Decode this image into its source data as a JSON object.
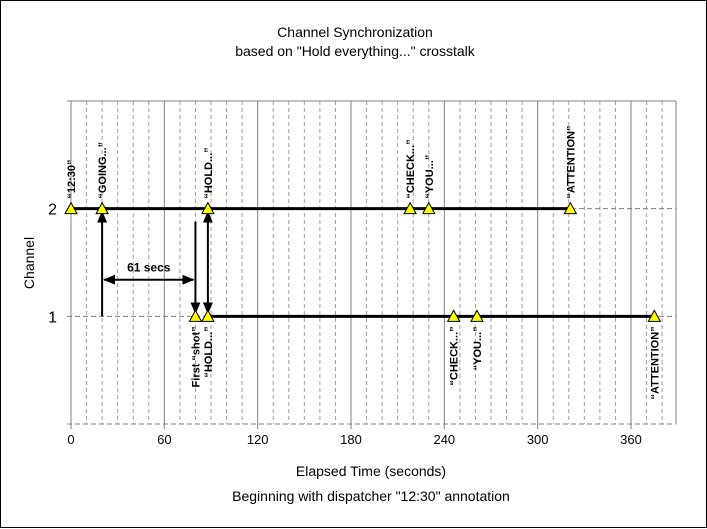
{
  "chart_data": {
    "type": "scatter",
    "title": "Channel Synchronization",
    "subtitle": "based on \"Hold everything...\" crosstalk",
    "xlabel": "Elapsed Time (seconds)",
    "xlabel2": "Beginning with dispatcher \"12:30\" annotation",
    "ylabel": "Channel",
    "xlim": [
      -2,
      389
    ],
    "ylim": [
      0,
      3
    ],
    "xticks": [
      0,
      60,
      120,
      180,
      240,
      300,
      360
    ],
    "yticks": [
      1,
      2
    ],
    "minor_x_step": 10,
    "grid": true,
    "series": [
      {
        "name": "Channel 2",
        "y": 2,
        "line": [
          0,
          321
        ],
        "points": [
          {
            "x": 0,
            "label": "“12:30”",
            "pos": "above"
          },
          {
            "x": 20,
            "label": "“GOING...”",
            "pos": "above"
          },
          {
            "x": 88,
            "label": "“HOLD...”",
            "pos": "above"
          },
          {
            "x": 218,
            "label": "“CHECK...”",
            "pos": "above"
          },
          {
            "x": 230,
            "label": "“YOU...”",
            "pos": "above"
          },
          {
            "x": 321,
            "label": "“ATTENTION”",
            "pos": "above"
          }
        ]
      },
      {
        "name": "Channel 1",
        "y": 1,
        "line": [
          88,
          375
        ],
        "points": [
          {
            "x": 80,
            "label": "First “shot”",
            "pos": "below"
          },
          {
            "x": 88,
            "label": "“HOLD...”",
            "pos": "below"
          },
          {
            "x": 246,
            "label": "“CHECK...”",
            "pos": "below"
          },
          {
            "x": 261,
            "label": "“YOU...”",
            "pos": "below"
          },
          {
            "x": 375,
            "label": "“ATTENTION”",
            "pos": "below"
          }
        ]
      }
    ],
    "annotations": [
      {
        "type": "interval",
        "from": 20,
        "to": 80,
        "y": 1.34,
        "label": "61 secs"
      }
    ],
    "colors": {
      "marker": "#ffff00",
      "line": "#000000",
      "grid": "#a0a0a0"
    }
  }
}
